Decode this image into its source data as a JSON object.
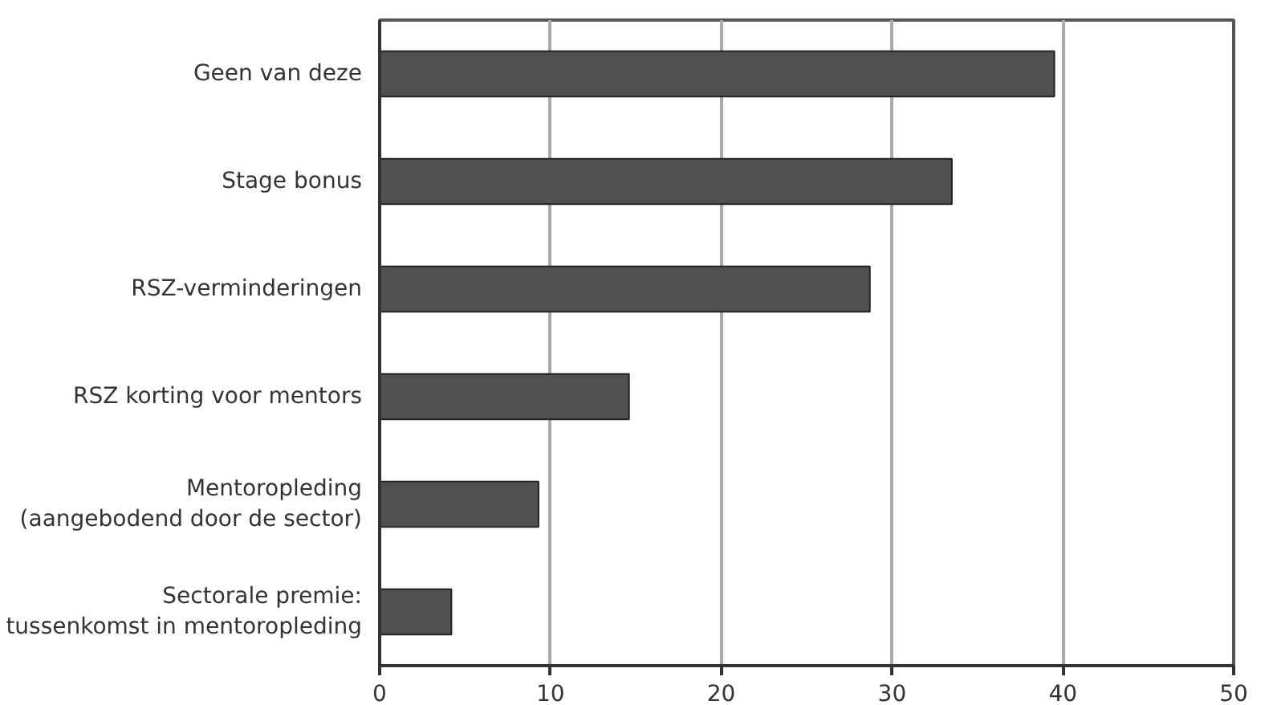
{
  "chart_data": {
    "type": "bar",
    "orientation": "horizontal",
    "categories": [
      "Geen van deze",
      "Stage bonus",
      "RSZ-verminderingen",
      "RSZ korting voor mentors",
      "Mentoropleding\n(aangebodend door de sector)",
      "Sectorale premie:\ntussenkomst in mentoropleding"
    ],
    "values": [
      39.5,
      33.5,
      28.7,
      14.6,
      9.3,
      4.2
    ],
    "color": "#505050",
    "xlim": [
      0,
      50
    ],
    "xticks": [
      0,
      10,
      20,
      30,
      40,
      50
    ],
    "grid": "x"
  }
}
